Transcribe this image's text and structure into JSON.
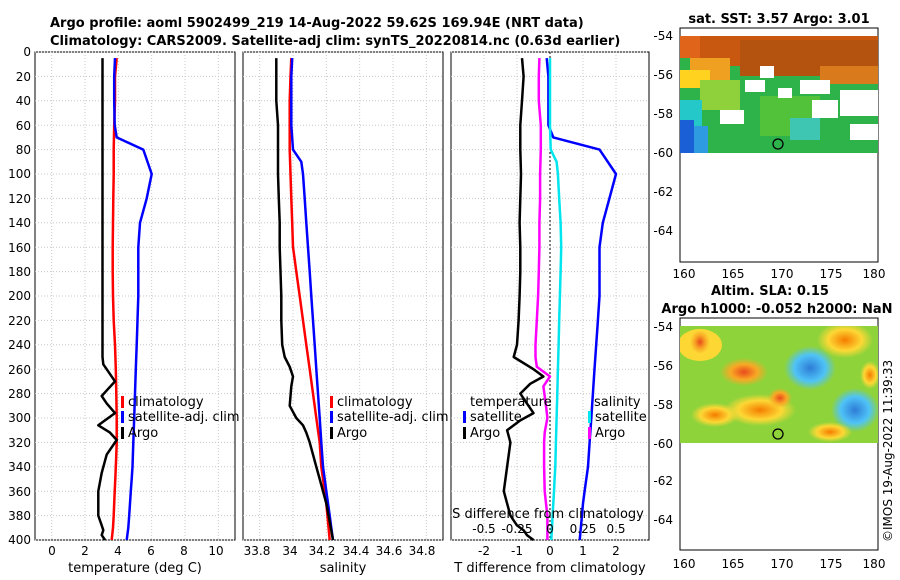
{
  "header": {
    "title_line1": "Argo profile: aoml 5902499_219 14-Aug-2022 59.62S 169.94E (NRT data)",
    "title_line2": "Climatology: CARS2009. Satellite-adj clim: synTS_20220814.nc (0.63d earlier)"
  },
  "footer": {
    "credit": "©IMOS 19-Aug-2022 11:39:33"
  },
  "colors": {
    "argo": "#000000",
    "climatology": "#ff0000",
    "satellite": "#0000ff",
    "sal_satellite": "#00e5ee",
    "sal_argo": "#ff00ff"
  },
  "chart_data": [
    {
      "id": "temperature_profile",
      "type": "line",
      "xlabel": "temperature (deg C)",
      "xlim": [
        -1,
        11
      ],
      "xticks": [
        "0",
        "2",
        "4",
        "6",
        "8",
        "10"
      ],
      "ylim": [
        400,
        0
      ],
      "yticks": [
        "0",
        "20",
        "40",
        "60",
        "80",
        "100",
        "120",
        "140",
        "160",
        "180",
        "200",
        "220",
        "240",
        "260",
        "280",
        "300",
        "320",
        "340",
        "360",
        "380",
        "400"
      ],
      "legend": [
        "climatology",
        "satellite-adj. clim",
        "Argo"
      ],
      "series": [
        {
          "name": "climatology",
          "color": "#ff0000",
          "x": [
            3.9,
            3.8,
            3.8,
            3.75,
            3.72,
            3.72,
            3.7,
            3.68,
            3.66,
            3.66,
            3.68,
            3.72,
            3.8,
            3.85,
            3.88,
            3.9,
            3.9,
            3.9,
            3.88,
            3.85,
            3.82,
            3.78,
            3.75,
            3.72,
            3.68,
            3.6
          ],
          "depth": [
            5,
            20,
            40,
            60,
            80,
            100,
            120,
            140,
            160,
            180,
            200,
            220,
            240,
            260,
            280,
            300,
            310,
            320,
            330,
            340,
            350,
            360,
            370,
            380,
            390,
            400
          ]
        },
        {
          "name": "satellite-adj. clim",
          "color": "#0000ff",
          "x": [
            3.8,
            3.75,
            3.75,
            3.78,
            3.9,
            5.5,
            6.0,
            5.7,
            5.3,
            5.2,
            5.2,
            5.2,
            5.15,
            5.1,
            5.05,
            5.0,
            4.95,
            4.9,
            4.85,
            4.8,
            4.75,
            4.7,
            4.65,
            4.6,
            4.5
          ],
          "depth": [
            5,
            20,
            40,
            60,
            70,
            80,
            100,
            120,
            140,
            160,
            180,
            200,
            220,
            240,
            260,
            280,
            300,
            320,
            340,
            350,
            360,
            370,
            380,
            390,
            400
          ]
        },
        {
          "name": "Argo",
          "color": "#000000",
          "x": [
            3.05,
            3.05,
            3.05,
            3.05,
            3.05,
            3.05,
            3.05,
            3.05,
            3.05,
            3.05,
            3.05,
            3.05,
            3.05,
            3.05,
            3.1,
            3.4,
            3.8,
            3.4,
            3.0,
            3.3,
            3.8,
            3.2,
            2.8,
            3.5,
            3.9,
            3.3,
            3.0,
            2.8,
            2.8,
            2.8,
            3.0,
            3.1,
            3.0,
            3.2
          ],
          "depth": [
            5,
            20,
            40,
            60,
            80,
            100,
            120,
            140,
            160,
            180,
            200,
            220,
            240,
            250,
            256,
            262,
            270,
            276,
            282,
            288,
            296,
            302,
            306,
            312,
            318,
            330,
            345,
            360,
            370,
            380,
            388,
            392,
            396,
            400
          ]
        }
      ]
    },
    {
      "id": "salinity_profile",
      "type": "line",
      "xlabel": "salinity",
      "xlim": [
        33.7,
        34.9
      ],
      "xticks": [
        "33.8",
        "34",
        "34.2",
        "34.4",
        "34.6",
        "34.8"
      ],
      "ylim": [
        400,
        0
      ],
      "legend": [
        "climatology",
        "satellite-adj. clim",
        "Argo"
      ],
      "series": [
        {
          "name": "climatology",
          "color": "#ff0000",
          "x": [
            33.99,
            33.985,
            33.98,
            33.98,
            33.98,
            33.985,
            33.99,
            33.995,
            34.0,
            34.01,
            34.02,
            34.04,
            34.06,
            34.08,
            34.1,
            34.12,
            34.14,
            34.16,
            34.17,
            34.18,
            34.19,
            34.2,
            34.21,
            34.22
          ],
          "depth": [
            5,
            20,
            40,
            60,
            80,
            100,
            120,
            140,
            160,
            170,
            180,
            200,
            220,
            240,
            260,
            280,
            300,
            320,
            340,
            350,
            360,
            370,
            385,
            400
          ]
        },
        {
          "name": "satellite-adj. clim",
          "color": "#0000ff",
          "x": [
            33.995,
            33.99,
            33.99,
            33.99,
            34.0,
            34.05,
            34.06,
            34.07,
            34.08,
            34.09,
            34.1,
            34.11,
            34.12,
            34.13,
            34.14,
            34.15,
            34.16,
            34.17,
            34.18,
            34.19,
            34.2,
            34.21,
            34.22,
            34.23,
            34.24
          ],
          "depth": [
            5,
            20,
            40,
            60,
            80,
            90,
            100,
            120,
            140,
            160,
            180,
            200,
            220,
            240,
            260,
            280,
            300,
            320,
            340,
            350,
            360,
            370,
            380,
            390,
            400
          ]
        },
        {
          "name": "Argo",
          "color": "#000000",
          "x": [
            33.9,
            33.9,
            33.9,
            33.91,
            33.91,
            33.91,
            33.915,
            33.92,
            33.92,
            33.925,
            33.93,
            33.93,
            33.935,
            33.95,
            33.98,
            34.0,
            33.99,
            33.98,
            34.02,
            34.06,
            34.08,
            34.1,
            34.12,
            34.14,
            34.16,
            34.18,
            34.2,
            34.22,
            34.24
          ],
          "depth": [
            5,
            20,
            40,
            60,
            80,
            100,
            120,
            140,
            160,
            180,
            200,
            220,
            240,
            250,
            258,
            266,
            274,
            290,
            300,
            306,
            312,
            320,
            330,
            340,
            350,
            360,
            370,
            385,
            400
          ]
        }
      ]
    },
    {
      "id": "difference_profile",
      "type": "line",
      "xlabel": "T difference from climatology",
      "xlabel_top": "S difference from climatology",
      "xlim": [
        -3,
        3
      ],
      "xticks": [
        "-2",
        "-1",
        "0",
        "1",
        "2"
      ],
      "xlim_top": [
        -0.75,
        0.75
      ],
      "xticks_top": [
        "-0.5",
        "-0.25",
        "0",
        "0.25",
        "0.5"
      ],
      "ylim": [
        400,
        0
      ],
      "legend_temperature": [
        "temperature",
        "satellite",
        "Argo"
      ],
      "legend_salinity": [
        "salinity",
        "satellite",
        "Argo"
      ],
      "series": [
        {
          "name": "temperature satellite",
          "color": "#0000ff",
          "axis": "T",
          "x": [
            -0.1,
            -0.05,
            -0.05,
            -0.05,
            0.1,
            1.5,
            2.0,
            1.8,
            1.6,
            1.5,
            1.5,
            1.5,
            1.45,
            1.4,
            1.35,
            1.3,
            1.25,
            1.2,
            1.15,
            1.1,
            1.05,
            1.0,
            0.95,
            0.9
          ],
          "depth": [
            5,
            20,
            40,
            60,
            70,
            80,
            100,
            120,
            140,
            160,
            180,
            200,
            220,
            240,
            260,
            280,
            300,
            320,
            340,
            350,
            360,
            370,
            385,
            400
          ]
        },
        {
          "name": "temperature Argo",
          "color": "#000000",
          "axis": "T",
          "x": [
            -0.85,
            -0.8,
            -0.85,
            -0.9,
            -0.9,
            -0.88,
            -0.9,
            -0.92,
            -0.9,
            -0.9,
            -0.92,
            -0.95,
            -1.0,
            -1.1,
            -0.5,
            -0.2,
            -0.6,
            -0.9,
            -0.7,
            -0.5,
            -0.9,
            -1.3,
            -1.2,
            -1.3,
            -1.4,
            -1.3,
            -1.2,
            -1.0,
            -0.8,
            -0.7,
            -0.5
          ],
          "depth": [
            5,
            20,
            40,
            60,
            80,
            100,
            120,
            140,
            160,
            180,
            200,
            220,
            240,
            250,
            260,
            266,
            272,
            280,
            288,
            296,
            302,
            310,
            320,
            340,
            360,
            370,
            380,
            388,
            392,
            396,
            400
          ]
        },
        {
          "name": "salinity satellite",
          "color": "#00e5ee",
          "axis": "S",
          "x": [
            0.0,
            0.0,
            0.0,
            0.0,
            0.005,
            0.05,
            0.06,
            0.07,
            0.08,
            0.085,
            0.08,
            0.075,
            0.07,
            0.065,
            0.06,
            0.055,
            0.05,
            0.045,
            0.04,
            0.035,
            0.03,
            0.025,
            0.02,
            0.015,
            0.01
          ],
          "depth": [
            5,
            20,
            40,
            60,
            80,
            90,
            100,
            120,
            140,
            160,
            180,
            200,
            220,
            240,
            260,
            280,
            300,
            320,
            340,
            350,
            360,
            370,
            380,
            390,
            400
          ]
        },
        {
          "name": "salinity Argo",
          "color": "#ff00ff",
          "axis": "S",
          "x": [
            -0.08,
            -0.085,
            -0.085,
            -0.07,
            -0.07,
            -0.075,
            -0.075,
            -0.08,
            -0.08,
            -0.085,
            -0.09,
            -0.1,
            -0.11,
            -0.11,
            -0.1,
            0.0,
            -0.05,
            -0.03,
            -0.02,
            -0.03,
            -0.04,
            -0.045,
            -0.045,
            -0.04,
            -0.03,
            -0.02,
            -0.02,
            -0.02
          ],
          "depth": [
            5,
            20,
            40,
            60,
            80,
            100,
            120,
            140,
            160,
            180,
            200,
            220,
            240,
            250,
            258,
            266,
            274,
            290,
            300,
            306,
            312,
            320,
            340,
            360,
            370,
            380,
            390,
            400
          ]
        }
      ]
    },
    {
      "id": "sst_map",
      "type": "heatmap",
      "title": "sat. SST: 3.57 Argo: 3.01",
      "xlim": [
        160,
        180
      ],
      "xticks": [
        "160",
        "165",
        "170",
        "175",
        "180"
      ],
      "ylim": [
        -66,
        -54
      ],
      "yticks": [
        "-54",
        "-56",
        "-58",
        "-60",
        "-62",
        "-64"
      ],
      "data_extent_lat": [
        -60,
        -54
      ],
      "profile_location": {
        "lon": 169.94,
        "lat": -59.62
      }
    },
    {
      "id": "sla_map",
      "type": "heatmap",
      "title": "Altim. SLA: 0.15",
      "subtitle": "Argo h1000: -0.052 h2000: NaN",
      "xlim": [
        160,
        180
      ],
      "xticks": [
        "160",
        "165",
        "170",
        "175",
        "180"
      ],
      "ylim": [
        -66,
        -54
      ],
      "yticks": [
        "-54",
        "-56",
        "-58",
        "-60",
        "-62",
        "-64"
      ],
      "data_extent_lat": [
        -60,
        -54
      ],
      "profile_location": {
        "lon": 169.94,
        "lat": -59.62
      }
    }
  ]
}
